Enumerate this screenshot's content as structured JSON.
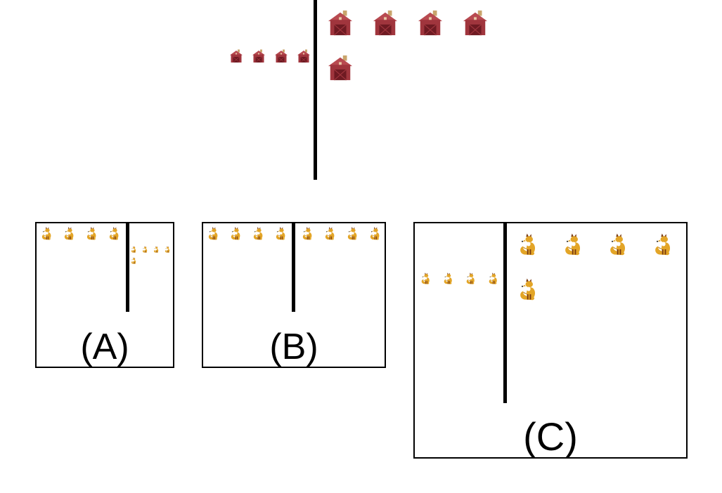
{
  "prompt": {
    "divider": "vertical-line",
    "left_icon": "barn-icon",
    "left_count": 4,
    "right_icon": "barn-icon",
    "right_count": 5,
    "icon_colors": {
      "roof": "#b84a50",
      "wall": "#a0353d",
      "door": "#6e1a22",
      "chimney": "#c9a46c"
    }
  },
  "options": [
    {
      "label": "(A)",
      "left_icon": "fox-icon",
      "left_count": 4,
      "right_icon": "fox-icon",
      "right_count": 5
    },
    {
      "label": "(B)",
      "left_icon": "fox-icon",
      "left_count": 4,
      "right_icon": "fox-icon",
      "right_count": 4
    },
    {
      "label": "(C)",
      "left_icon": "fox-icon",
      "left_count": 4,
      "right_icon": "fox-icon",
      "right_count": 5
    }
  ],
  "fox_colors": {
    "body": "#e3a527",
    "dark": "#7a3b12",
    "white": "#ffffff"
  }
}
